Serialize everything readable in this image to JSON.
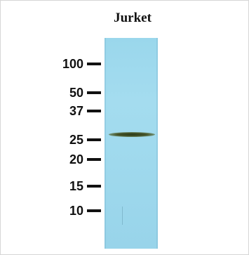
{
  "figure": {
    "lane_label": "Jurket",
    "markers": [
      "100",
      "50",
      "37",
      "25",
      "20",
      "15",
      "10"
    ],
    "colors": {
      "membrane": "#a0dbef",
      "band": "#2f3f1c",
      "text": "#111111"
    }
  }
}
